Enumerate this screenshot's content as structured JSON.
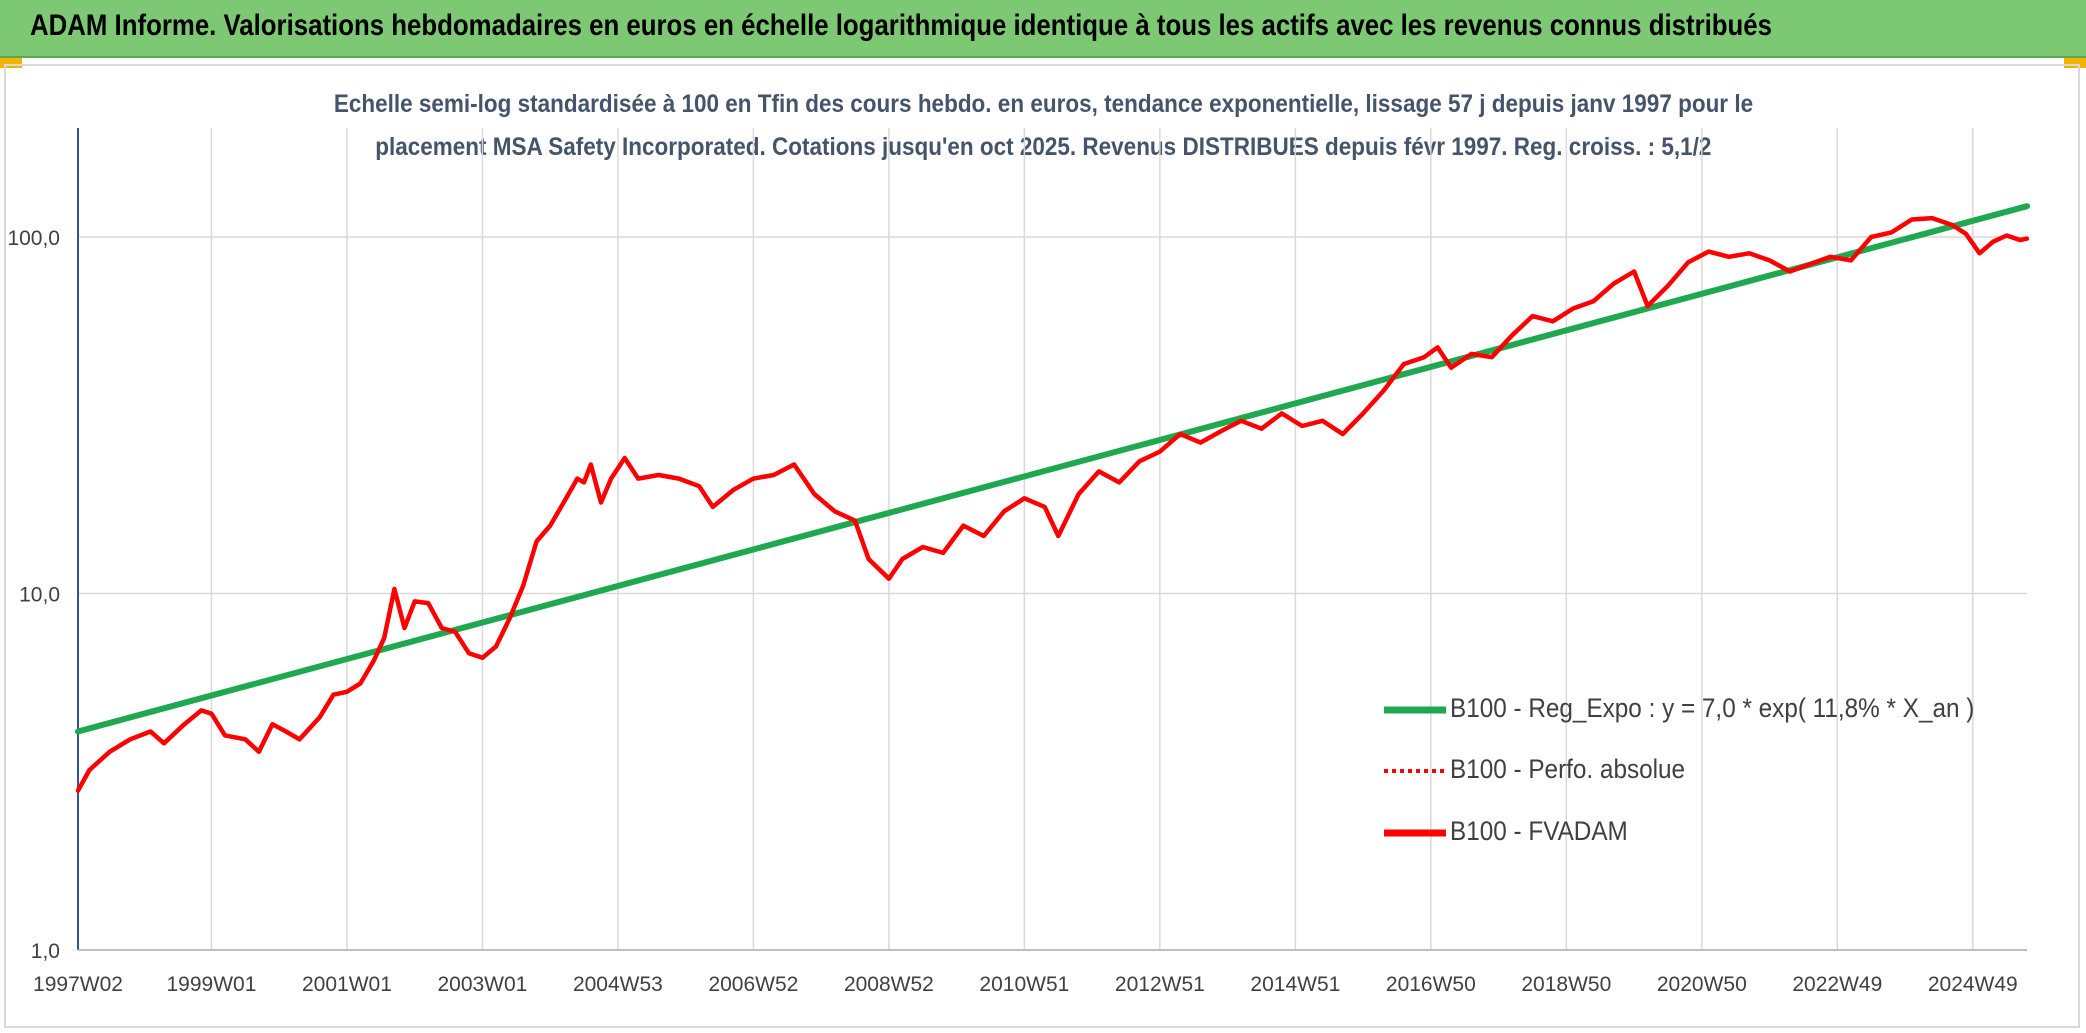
{
  "header": {
    "title": "ADAM Informe. Valorisations hebdomadaires en euros en échelle logarithmique identique à tous les actifs avec les revenus connus distribués"
  },
  "chart_data": {
    "type": "line",
    "title_line1": "Echelle semi-log standardisée à 100 en Tfin des cours hebdo. en euros, tendance exponentielle, lissage 57 j depuis janv 1997 pour le",
    "title_line2": "placement MSA Safety Incorporated. Cotations jusqu'en oct 2025. Revenus DISTRIBUES depuis févr 1997. Reg. croiss. : 5,1/2",
    "y_scale": "log",
    "ylim": [
      1,
      200
    ],
    "y_ticks": [
      {
        "value": 1,
        "label": "1,0"
      },
      {
        "value": 10,
        "label": "10,0"
      },
      {
        "value": 100,
        "label": "100,0"
      }
    ],
    "xlim": [
      1997.03,
      2025.8
    ],
    "x_ticks": [
      {
        "value": 1997.03,
        "label": "1997W02"
      },
      {
        "value": 1999.0,
        "label": "1999W01"
      },
      {
        "value": 2001.0,
        "label": "2001W01"
      },
      {
        "value": 2003.0,
        "label": "2003W01"
      },
      {
        "value": 2005.0,
        "label": "2004W53"
      },
      {
        "value": 2007.0,
        "label": "2006W52"
      },
      {
        "value": 2009.0,
        "label": "2008W52"
      },
      {
        "value": 2011.0,
        "label": "2010W51"
      },
      {
        "value": 2013.0,
        "label": "2012W51"
      },
      {
        "value": 2015.0,
        "label": "2014W51"
      },
      {
        "value": 2017.0,
        "label": "2016W50"
      },
      {
        "value": 2019.0,
        "label": "2018W50"
      },
      {
        "value": 2021.0,
        "label": "2020W50"
      },
      {
        "value": 2023.0,
        "label": "2022W49"
      },
      {
        "value": 2025.0,
        "label": "2024W49"
      }
    ],
    "grid": "vertical and horizontal",
    "legend_position": "bottom-right",
    "series": [
      {
        "name": "B100 - Reg_Expo : y = 7,0 * exp( 11,8% *  X_an )",
        "color": "#1fa84f",
        "style": "solid",
        "points": [
          [
            1997.03,
            4.1
          ],
          [
            2025.8,
            122
          ]
        ]
      },
      {
        "name": "B100 - Perfo. absolue",
        "color": "#ff0000",
        "style": "dotted",
        "points": []
      },
      {
        "name": "B100 - FVADAM",
        "color": "#ff0000",
        "style": "solid",
        "points": [
          [
            1997.03,
            2.8
          ],
          [
            1997.2,
            3.2
          ],
          [
            1997.5,
            3.6
          ],
          [
            1997.8,
            3.9
          ],
          [
            1998.1,
            4.1
          ],
          [
            1998.3,
            3.8
          ],
          [
            1998.6,
            4.3
          ],
          [
            1998.85,
            4.7
          ],
          [
            1999.0,
            4.6
          ],
          [
            1999.2,
            4.0
          ],
          [
            1999.5,
            3.9
          ],
          [
            1999.7,
            3.6
          ],
          [
            1999.9,
            4.3
          ],
          [
            2000.1,
            4.1
          ],
          [
            2000.3,
            3.9
          ],
          [
            2000.6,
            4.5
          ],
          [
            2000.8,
            5.2
          ],
          [
            2001.0,
            5.3
          ],
          [
            2001.2,
            5.6
          ],
          [
            2001.4,
            6.5
          ],
          [
            2001.55,
            7.5
          ],
          [
            2001.7,
            10.3
          ],
          [
            2001.85,
            8.0
          ],
          [
            2002.0,
            9.5
          ],
          [
            2002.2,
            9.4
          ],
          [
            2002.4,
            8.0
          ],
          [
            2002.6,
            7.8
          ],
          [
            2002.8,
            6.8
          ],
          [
            2003.0,
            6.6
          ],
          [
            2003.2,
            7.1
          ],
          [
            2003.4,
            8.5
          ],
          [
            2003.6,
            10.5
          ],
          [
            2003.8,
            14.0
          ],
          [
            2004.0,
            15.5
          ],
          [
            2004.2,
            18.0
          ],
          [
            2004.4,
            21.0
          ],
          [
            2004.5,
            20.5
          ],
          [
            2004.6,
            23.0
          ],
          [
            2004.75,
            18.0
          ],
          [
            2004.9,
            21.0
          ],
          [
            2005.1,
            24.0
          ],
          [
            2005.3,
            21.0
          ],
          [
            2005.6,
            21.5
          ],
          [
            2005.9,
            21.0
          ],
          [
            2006.2,
            20.0
          ],
          [
            2006.4,
            17.5
          ],
          [
            2006.7,
            19.5
          ],
          [
            2007.0,
            21.0
          ],
          [
            2007.3,
            21.5
          ],
          [
            2007.6,
            23.0
          ],
          [
            2007.9,
            19.0
          ],
          [
            2008.2,
            17.0
          ],
          [
            2008.5,
            16.0
          ],
          [
            2008.7,
            12.5
          ],
          [
            2009.0,
            11.0
          ],
          [
            2009.2,
            12.5
          ],
          [
            2009.5,
            13.5
          ],
          [
            2009.8,
            13.0
          ],
          [
            2010.1,
            15.5
          ],
          [
            2010.4,
            14.5
          ],
          [
            2010.7,
            17.0
          ],
          [
            2011.0,
            18.5
          ],
          [
            2011.3,
            17.5
          ],
          [
            2011.5,
            14.5
          ],
          [
            2011.8,
            19.0
          ],
          [
            2012.1,
            22.0
          ],
          [
            2012.4,
            20.5
          ],
          [
            2012.7,
            23.5
          ],
          [
            2013.0,
            25.0
          ],
          [
            2013.3,
            28.0
          ],
          [
            2013.6,
            26.5
          ],
          [
            2013.9,
            28.5
          ],
          [
            2014.2,
            30.5
          ],
          [
            2014.5,
            29.0
          ],
          [
            2014.8,
            32.0
          ],
          [
            2015.1,
            29.5
          ],
          [
            2015.4,
            30.5
          ],
          [
            2015.7,
            28.0
          ],
          [
            2016.0,
            32.0
          ],
          [
            2016.3,
            37.0
          ],
          [
            2016.6,
            44.0
          ],
          [
            2016.9,
            46.0
          ],
          [
            2017.1,
            49.0
          ],
          [
            2017.3,
            43.0
          ],
          [
            2017.6,
            47.0
          ],
          [
            2017.9,
            46.0
          ],
          [
            2018.2,
            53.0
          ],
          [
            2018.5,
            60.0
          ],
          [
            2018.8,
            58.0
          ],
          [
            2019.1,
            63.0
          ],
          [
            2019.4,
            66.0
          ],
          [
            2019.7,
            74.0
          ],
          [
            2020.0,
            80.0
          ],
          [
            2020.2,
            64.0
          ],
          [
            2020.5,
            73.0
          ],
          [
            2020.8,
            85.0
          ],
          [
            2021.1,
            91.0
          ],
          [
            2021.4,
            88.0
          ],
          [
            2021.7,
            90.0
          ],
          [
            2022.0,
            86.0
          ],
          [
            2022.3,
            80.0
          ],
          [
            2022.6,
            84.0
          ],
          [
            2022.9,
            88.0
          ],
          [
            2023.2,
            86.0
          ],
          [
            2023.5,
            100.0
          ],
          [
            2023.8,
            103.0
          ],
          [
            2024.1,
            112.0
          ],
          [
            2024.4,
            113.0
          ],
          [
            2024.7,
            108.0
          ],
          [
            2024.9,
            102.0
          ],
          [
            2025.1,
            90.0
          ],
          [
            2025.3,
            97.0
          ],
          [
            2025.5,
            101.0
          ],
          [
            2025.7,
            98.0
          ],
          [
            2025.8,
            99.0
          ]
        ]
      }
    ]
  }
}
